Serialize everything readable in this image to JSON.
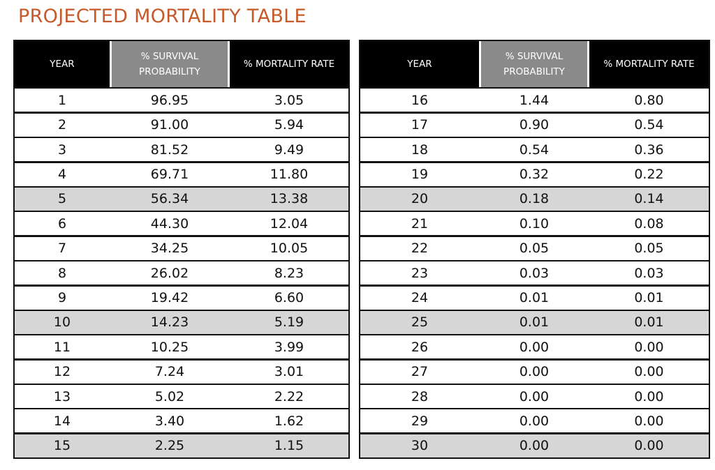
{
  "title": "PROJECTED MORTALITY TABLE",
  "colors": {
    "title": "#c65a2a",
    "header_dark": "#000000",
    "header_gray": "#8a8a8a",
    "shaded_row": "#d6d6d6"
  },
  "headers": {
    "year": "YEAR",
    "survival_line1": "% SURVIVAL",
    "survival_line2": "PROBABILITY",
    "mortality": "% MORTALITY  RATE"
  },
  "left_table": {
    "rows": [
      {
        "year": "1",
        "survival": "96.95",
        "mortality": "3.05"
      },
      {
        "year": "2",
        "survival": "91.00",
        "mortality": "5.94"
      },
      {
        "year": "3",
        "survival": "81.52",
        "mortality": "9.49"
      },
      {
        "year": "4",
        "survival": "69.71",
        "mortality": "11.80"
      },
      {
        "year": "5",
        "survival": "56.34",
        "mortality": "13.38"
      },
      {
        "year": "6",
        "survival": "44.30",
        "mortality": "12.04"
      },
      {
        "year": "7",
        "survival": "34.25",
        "mortality": "10.05"
      },
      {
        "year": "8",
        "survival": "26.02",
        "mortality": "8.23"
      },
      {
        "year": "9",
        "survival": "19.42",
        "mortality": "6.60"
      },
      {
        "year": "10",
        "survival": "14.23",
        "mortality": "5.19"
      },
      {
        "year": "11",
        "survival": "10.25",
        "mortality": "3.99"
      },
      {
        "year": "12",
        "survival": "7.24",
        "mortality": "3.01"
      },
      {
        "year": "13",
        "survival": "5.02",
        "mortality": "2.22"
      },
      {
        "year": "14",
        "survival": "3.40",
        "mortality": "1.62"
      },
      {
        "year": "15",
        "survival": "2.25",
        "mortality": "1.15"
      }
    ]
  },
  "right_table": {
    "rows": [
      {
        "year": "16",
        "survival": "1.44",
        "mortality": "0.80"
      },
      {
        "year": "17",
        "survival": "0.90",
        "mortality": "0.54"
      },
      {
        "year": "18",
        "survival": "0.54",
        "mortality": "0.36"
      },
      {
        "year": "19",
        "survival": "0.32",
        "mortality": "0.22"
      },
      {
        "year": "20",
        "survival": "0.18",
        "mortality": "0.14"
      },
      {
        "year": "21",
        "survival": "0.10",
        "mortality": "0.08"
      },
      {
        "year": "22",
        "survival": "0.05",
        "mortality": "0.05"
      },
      {
        "year": "23",
        "survival": "0.03",
        "mortality": "0.03"
      },
      {
        "year": "24",
        "survival": "0.01",
        "mortality": "0.01"
      },
      {
        "year": "25",
        "survival": "0.01",
        "mortality": "0.01"
      },
      {
        "year": "26",
        "survival": "0.00",
        "mortality": "0.00"
      },
      {
        "year": "27",
        "survival": "0.00",
        "mortality": "0.00"
      },
      {
        "year": "28",
        "survival": "0.00",
        "mortality": "0.00"
      },
      {
        "year": "29",
        "survival": "0.00",
        "mortality": "0.00"
      },
      {
        "year": "30",
        "survival": "0.00",
        "mortality": "0.00"
      }
    ]
  },
  "shaded_years": [
    "5",
    "10",
    "15",
    "20",
    "25",
    "30"
  ]
}
